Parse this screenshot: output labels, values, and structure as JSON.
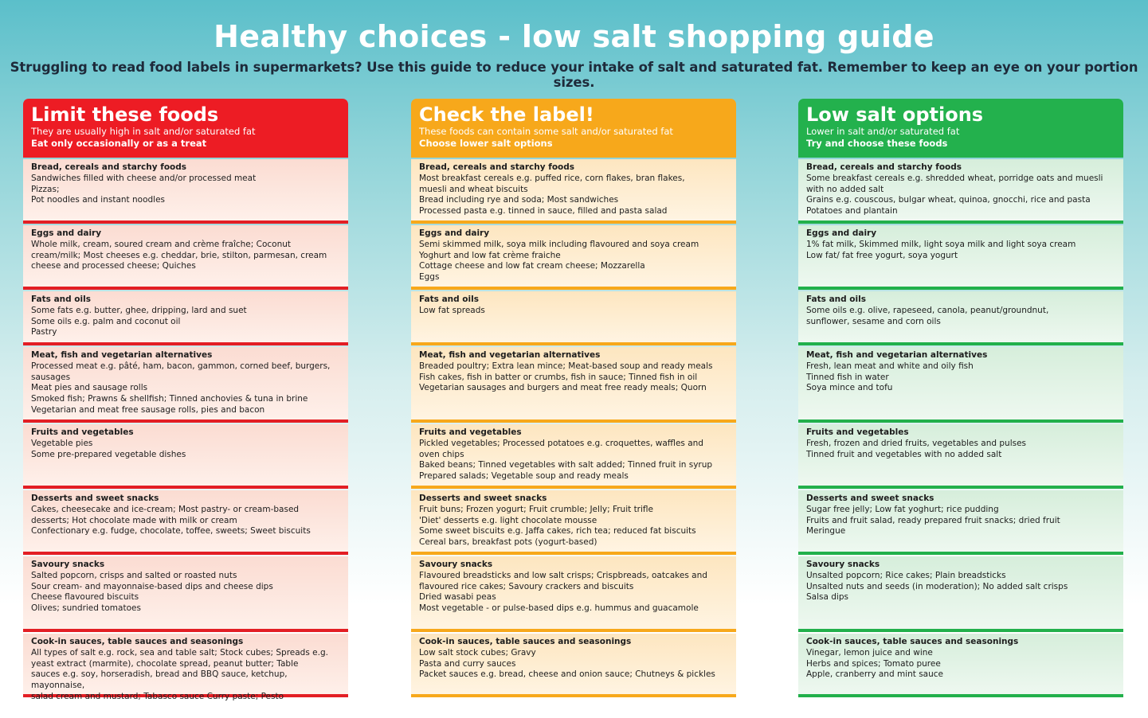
{
  "title": "Healthy choices - low salt shopping guide",
  "intro": "Struggling to read food labels in supermarkets? Use this guide to reduce your intake of salt and saturated fat. Remember to keep an eye on your portion sizes.",
  "colors": {
    "limit": "#ed1c24",
    "check": "#f7a81b",
    "low": "#23b14d"
  },
  "columns": [
    {
      "title": "Limit these foods",
      "subtitle": "They are usually high in salt and/or saturated fat",
      "advice": "Eat only occasionally or as a treat",
      "sections": [
        {
          "title": "Bread, cereals and starchy foods",
          "lines": [
            "Sandwiches filled with cheese and/or processed meat",
            "Pizzas;",
            "Pot noodles and instant noodles"
          ]
        },
        {
          "title": "Eggs and dairy",
          "lines": [
            "Whole milk, cream, soured cream and crème fraîche; Coconut",
            "cream/milk; Most cheeses e.g. cheddar, brie, stilton, parmesan, cream",
            "cheese and processed cheese; Quiches"
          ]
        },
        {
          "title": "Fats and oils",
          "lines": [
            "Some fats e.g. butter, ghee, dripping, lard and suet",
            "Some oils e.g. palm and coconut oil",
            "Pastry"
          ]
        },
        {
          "title": "Meat, fish and vegetarian alternatives",
          "lines": [
            "Processed meat e.g. pâté, ham, bacon, gammon, corned beef, burgers,",
            "sausages",
            "Meat pies and sausage rolls",
            "Smoked fish; Prawns & shellfish; Tinned anchovies & tuna in brine",
            "Vegetarian and meat free sausage rolls, pies and bacon"
          ]
        },
        {
          "title": "Fruits and vegetables",
          "lines": [
            "Vegetable pies",
            "Some pre-prepared vegetable dishes"
          ]
        },
        {
          "title": "Desserts and sweet snacks",
          "lines": [
            "Cakes, cheesecake and ice-cream; Most pastry- or cream-based",
            "desserts; Hot chocolate made with milk or cream",
            "Confectionary e.g. fudge, chocolate, toffee, sweets; Sweet biscuits"
          ]
        },
        {
          "title": "Savoury snacks",
          "lines": [
            "Salted popcorn, crisps and salted or roasted nuts",
            "Sour cream- and mayonnaise-based dips and cheese dips",
            "Cheese flavoured biscuits",
            "Olives; sundried tomatoes"
          ]
        },
        {
          "title": "Cook-in sauces, table sauces and seasonings",
          "lines": [
            "All types of salt e.g. rock, sea and table salt; Stock cubes; Spreads e.g.",
            "yeast extract (marmite), chocolate spread, peanut butter; Table",
            "sauces e.g. soy, horseradish, bread and BBQ sauce, ketchup, mayonnaise,",
            "salad cream and mustard; Tabasco sauce Curry paste; Pesto"
          ]
        }
      ]
    },
    {
      "title": "Check the label!",
      "subtitle": "These foods can contain some salt and/or saturated fat",
      "advice": "Choose lower salt options",
      "sections": [
        {
          "title": "Bread, cereals and starchy foods",
          "lines": [
            "Most breakfast cereals e.g. puffed rice, corn flakes, bran flakes,",
            "muesli and wheat biscuits",
            "Bread including rye and soda; Most sandwiches",
            "Processed pasta e.g. tinned in sauce, filled and pasta salad"
          ]
        },
        {
          "title": "Eggs and dairy",
          "lines": [
            "Semi skimmed milk, soya milk including flavoured and soya cream",
            "Yoghurt and low fat crème fraiche",
            "Cottage cheese and low fat cream cheese; Mozzarella",
            "Eggs"
          ]
        },
        {
          "title": "Fats and oils",
          "lines": [
            "Low fat spreads"
          ]
        },
        {
          "title": "Meat, fish and vegetarian alternatives",
          "lines": [
            "Breaded poultry; Extra lean mince; Meat-based soup and ready meals",
            "Fish cakes, fish in batter or crumbs, fish in sauce; Tinned fish in oil",
            "Vegetarian sausages and burgers and meat free ready meals; Quorn"
          ]
        },
        {
          "title": "Fruits and vegetables",
          "lines": [
            "Pickled vegetables; Processed potatoes e.g. croquettes, waffles and",
            "oven chips",
            "Baked beans; Tinned vegetables with salt added; Tinned fruit in syrup",
            "Prepared salads; Vegetable soup and ready meals"
          ]
        },
        {
          "title": "Desserts and sweet snacks",
          "lines": [
            "Fruit buns; Frozen yogurt; Fruit crumble; Jelly; Fruit trifle",
            "'Diet' desserts e.g. light chocolate mousse",
            "Some sweet biscuits e.g. Jaffa cakes, rich tea; reduced fat biscuits",
            "Cereal bars, breakfast pots (yogurt-based)"
          ]
        },
        {
          "title": "Savoury snacks",
          "lines": [
            "Flavoured breadsticks and low salt crisps; Crispbreads, oatcakes and",
            "flavoured rice cakes; Savoury crackers and biscuits",
            "Dried wasabi peas",
            "Most vegetable - or pulse-based dips e.g. hummus and guacamole"
          ]
        },
        {
          "title": "Cook-in sauces, table sauces and seasonings",
          "lines": [
            "Low salt stock cubes; Gravy",
            "Pasta and curry sauces",
            "Packet sauces e.g. bread, cheese and onion sauce; Chutneys & pickles"
          ]
        }
      ]
    },
    {
      "title": "Low salt options",
      "subtitle": "Lower in salt and/or saturated fat",
      "advice": "Try and choose these foods",
      "sections": [
        {
          "title": "Bread, cereals and starchy foods",
          "lines": [
            "Some breakfast cereals e.g. shredded wheat, porridge oats and muesli",
            "with no added salt",
            "Grains e.g. couscous, bulgar wheat, quinoa, gnocchi, rice and pasta",
            "Potatoes and plantain"
          ]
        },
        {
          "title": "Eggs and dairy",
          "lines": [
            "1% fat milk, Skimmed milk, light soya milk and light soya cream",
            "Low fat/ fat free yogurt, soya yogurt"
          ]
        },
        {
          "title": "Fats and oils",
          "lines": [
            "Some oils e.g. olive, rapeseed, canola, peanut/groundnut,",
            "sunflower, sesame and corn oils"
          ]
        },
        {
          "title": "Meat, fish and vegetarian alternatives",
          "lines": [
            "Fresh, lean meat and white  and oily fish",
            "Tinned fish in water",
            "Soya mince and tofu"
          ]
        },
        {
          "title": "Fruits and vegetables",
          "lines": [
            "Fresh, frozen and dried fruits, vegetables and pulses",
            "Tinned fruit and vegetables with no added salt"
          ]
        },
        {
          "title": "Desserts and sweet snacks",
          "lines": [
            "Sugar free jelly; Low fat yoghurt; rice pudding",
            "Fruits and fruit salad, ready prepared fruit snacks; dried fruit",
            "Meringue"
          ]
        },
        {
          "title": "Savoury snacks",
          "lines": [
            "Unsalted popcorn; Rice cakes; Plain breadsticks",
            "Unsalted nuts and seeds (in moderation); No added salt crisps",
            "Salsa dips"
          ]
        },
        {
          "title": "Cook-in sauces, table sauces and seasonings",
          "lines": [
            "Vinegar, lemon juice and wine",
            "Herbs and spices;  Tomato puree",
            "Apple, cranberry and mint sauce"
          ]
        }
      ]
    }
  ]
}
